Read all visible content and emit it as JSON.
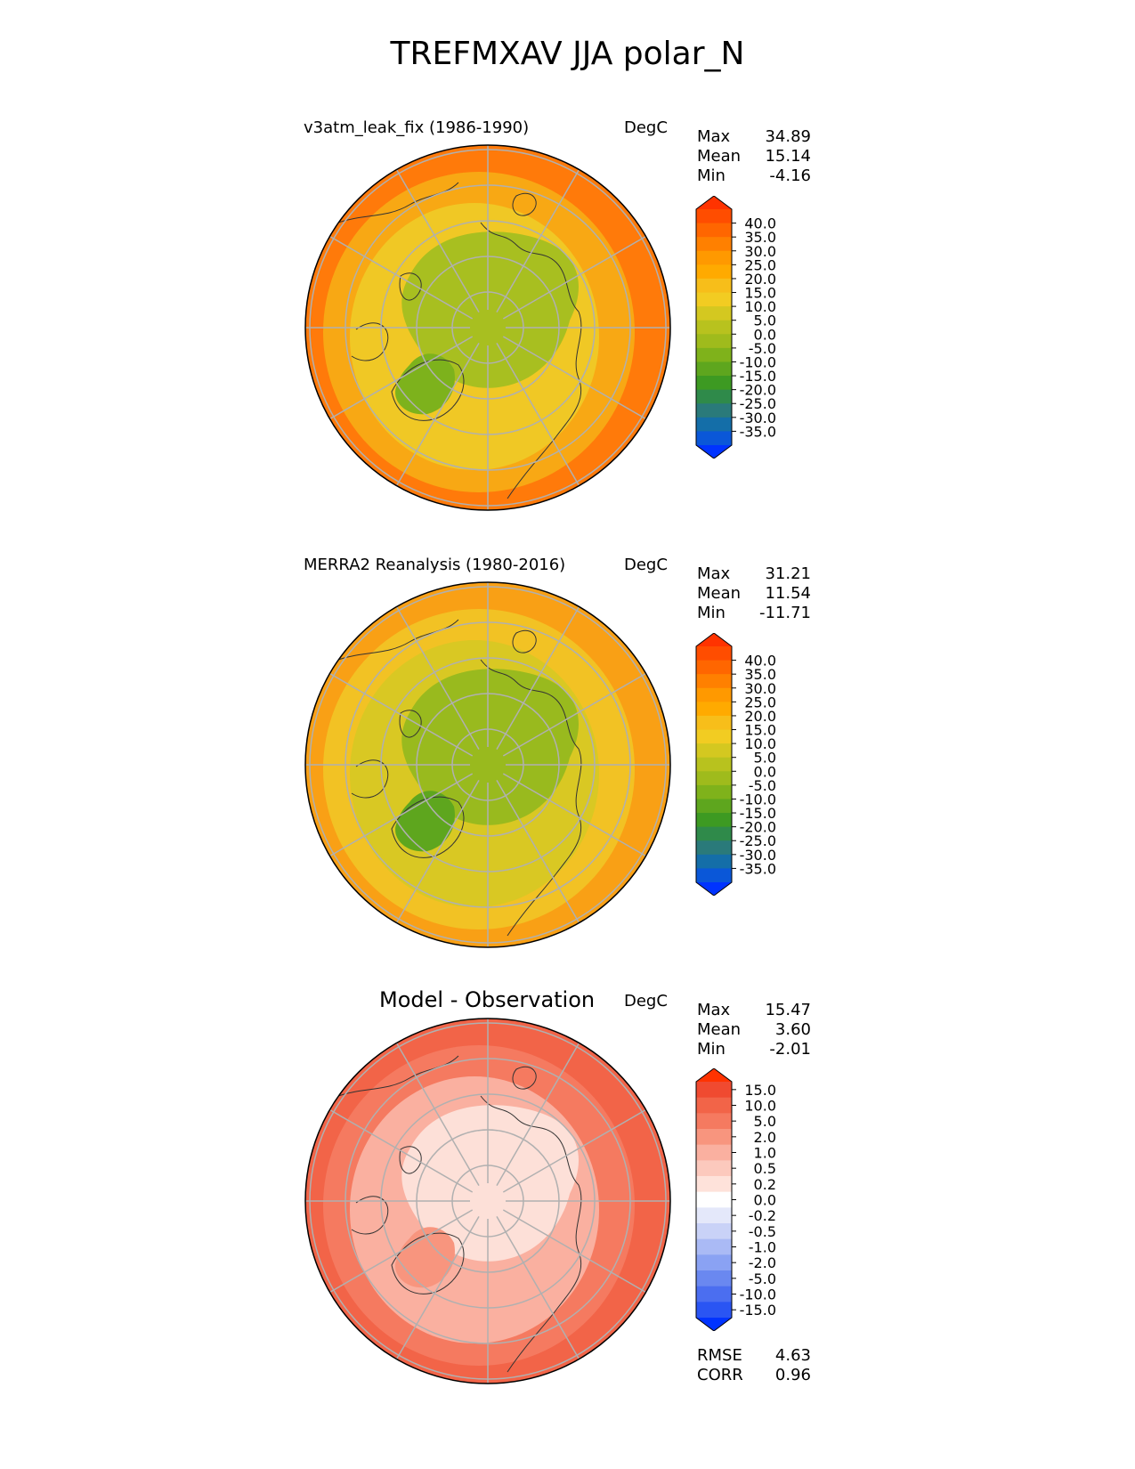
{
  "figure_title": "TREFMXAV JJA polar_N",
  "panels": [
    {
      "label": "v3atm_leak_fix (1986-1990)",
      "units": "DegC",
      "stats": [
        {
          "name": "Max",
          "value": "34.89"
        },
        {
          "name": "Mean",
          "value": "15.14"
        },
        {
          "name": "Min",
          "value": "-4.16"
        }
      ],
      "colorbar_ticks": [
        "40.0",
        "35.0",
        "30.0",
        "25.0",
        "20.0",
        "15.0",
        "10.0",
        "5.0",
        "0.0",
        "-5.0",
        "-10.0",
        "-15.0",
        "-20.0",
        "-25.0",
        "-30.0",
        "-35.0"
      ],
      "colorbar_colors": [
        "#ff3300",
        "#ff4d00",
        "#ff6600",
        "#ff8000",
        "#ff9900",
        "#ffaa00",
        "#f7be1a",
        "#f2cc22",
        "#d4c820",
        "#b8c21e",
        "#9fbb1c",
        "#7fb21b",
        "#5ea61e",
        "#3d9a22",
        "#2f8a4a",
        "#2a7a7a",
        "#146ea8",
        "#0a57d8",
        "#0033ff"
      ],
      "map_colors": {
        "outer": "#ff7a0a",
        "mid": "#f8a814",
        "inner": "#f0c825",
        "arctic": "#a8bf20",
        "greenland": "#7db21c"
      }
    },
    {
      "label": "MERRA2 Reanalysis (1980-2016)",
      "units": "DegC",
      "stats": [
        {
          "name": "Max",
          "value": "31.21"
        },
        {
          "name": "Mean",
          "value": "11.54"
        },
        {
          "name": "Min",
          "value": "-11.71"
        }
      ],
      "colorbar_ticks": [
        "40.0",
        "35.0",
        "30.0",
        "25.0",
        "20.0",
        "15.0",
        "10.0",
        "5.0",
        "0.0",
        "-5.0",
        "-10.0",
        "-15.0",
        "-20.0",
        "-25.0",
        "-30.0",
        "-35.0"
      ],
      "colorbar_colors": [
        "#ff3300",
        "#ff4d00",
        "#ff6600",
        "#ff8000",
        "#ff9900",
        "#ffaa00",
        "#f7be1a",
        "#f2cc22",
        "#d4c820",
        "#b8c21e",
        "#9fbb1c",
        "#7fb21b",
        "#5ea61e",
        "#3d9a22",
        "#2f8a4a",
        "#2a7a7a",
        "#146ea8",
        "#0a57d8",
        "#0033ff"
      ],
      "map_colors": {
        "outer": "#f9a015",
        "mid": "#f2c224",
        "inner": "#d9c823",
        "arctic": "#99ba1e",
        "greenland": "#5ea61e"
      }
    },
    {
      "label": "Model - Observation",
      "units": "DegC",
      "stats": [
        {
          "name": "Max",
          "value": "15.47"
        },
        {
          "name": "Mean",
          "value": "3.60"
        },
        {
          "name": "Min",
          "value": "-2.01"
        }
      ],
      "colorbar_ticks": [
        "15.0",
        "10.0",
        "5.0",
        "2.0",
        "1.0",
        "0.5",
        "0.2",
        "0.0",
        "-0.2",
        "-0.5",
        "-1.0",
        "-2.0",
        "-5.0",
        "-10.0",
        "-15.0"
      ],
      "colorbar_colors": [
        "#ff3300",
        "#f04a30",
        "#f26448",
        "#f57a60",
        "#f8957e",
        "#fab0a0",
        "#fcc9bd",
        "#fee2da",
        "#ffffff",
        "#e4e8fa",
        "#c9d2f7",
        "#aabaf5",
        "#8aa2f3",
        "#6a88f0",
        "#4b6ef0",
        "#2a55f3",
        "#0033ff"
      ],
      "map_colors": {
        "outer": "#f26448",
        "mid": "#f57a60",
        "inner": "#fab0a0",
        "arctic": "#fde0d8",
        "greenland": "#f8957e"
      },
      "extra_stats": [
        {
          "name": "RMSE",
          "value": "4.63"
        },
        {
          "name": "CORR",
          "value": "0.96"
        }
      ]
    }
  ]
}
